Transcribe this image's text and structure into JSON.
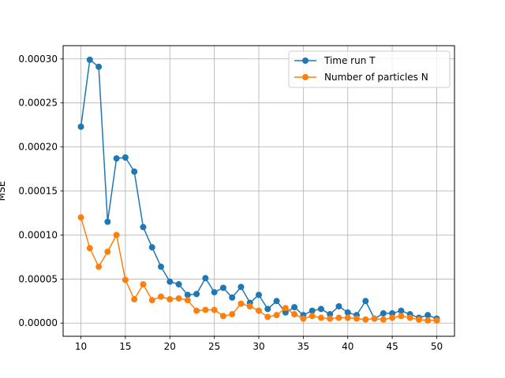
{
  "chart_data": {
    "type": "line",
    "title": "",
    "xlabel": "",
    "ylabel": "MSE",
    "xlim": [
      8,
      52
    ],
    "ylim": [
      -1.5e-05,
      0.000315
    ],
    "grid": true,
    "legend_position": "top-right",
    "x_ticks": [
      10,
      15,
      20,
      25,
      30,
      35,
      40,
      45,
      50
    ],
    "x_tick_labels": [
      "10",
      "15",
      "20",
      "25",
      "30",
      "35",
      "40",
      "45",
      "50"
    ],
    "y_ticks": [
      0,
      5e-05,
      0.0001,
      0.00015,
      0.0002,
      0.00025,
      0.0003
    ],
    "y_tick_labels": [
      "0.00000",
      "0.00005",
      "0.00010",
      "0.00015",
      "0.00020",
      "0.00025",
      "0.00030"
    ],
    "x": [
      10,
      11,
      12,
      13,
      14,
      15,
      16,
      17,
      18,
      19,
      20,
      21,
      22,
      23,
      24,
      25,
      26,
      27,
      28,
      29,
      30,
      31,
      32,
      33,
      34,
      35,
      36,
      37,
      38,
      39,
      40,
      41,
      42,
      43,
      44,
      45,
      46,
      47,
      48,
      49,
      50
    ],
    "series": [
      {
        "name": "Time run T",
        "color": "#1f77b4",
        "values": [
          0.000223,
          0.000299,
          0.000291,
          0.000115,
          0.000187,
          0.000188,
          0.000172,
          0.000109,
          8.6e-05,
          6.4e-05,
          4.7e-05,
          4.4e-05,
          3.2e-05,
          3.3e-05,
          5.1e-05,
          3.5e-05,
          4e-05,
          2.9e-05,
          4.1e-05,
          2.3e-05,
          3.2e-05,
          1.6e-05,
          2.5e-05,
          1.2e-05,
          1.8e-05,
          9e-06,
          1.4e-05,
          1.6e-05,
          1e-05,
          1.9e-05,
          1.2e-05,
          9e-06,
          2.5e-05,
          5e-06,
          1.1e-05,
          1.1e-05,
          1.4e-05,
          1e-05,
          6e-06,
          9e-06,
          5e-06
        ]
      },
      {
        "name": "Number of particles N",
        "color": "#ff7f0e",
        "values": [
          0.00012,
          8.5e-05,
          6.4e-05,
          8.1e-05,
          0.0001,
          4.9e-05,
          2.7e-05,
          4.4e-05,
          2.6e-05,
          3e-05,
          2.7e-05,
          2.8e-05,
          2.6e-05,
          1.4e-05,
          1.5e-05,
          1.5e-05,
          8e-06,
          1e-05,
          2.2e-05,
          1.9e-05,
          1.4e-05,
          7e-06,
          9e-06,
          1.7e-05,
          1e-05,
          5e-06,
          8e-06,
          6e-06,
          5e-06,
          6e-06,
          6e-06,
          5e-06,
          4e-06,
          5e-06,
          4e-06,
          6e-06,
          8e-06,
          6e-06,
          4e-06,
          3e-06,
          3e-06
        ]
      }
    ]
  }
}
